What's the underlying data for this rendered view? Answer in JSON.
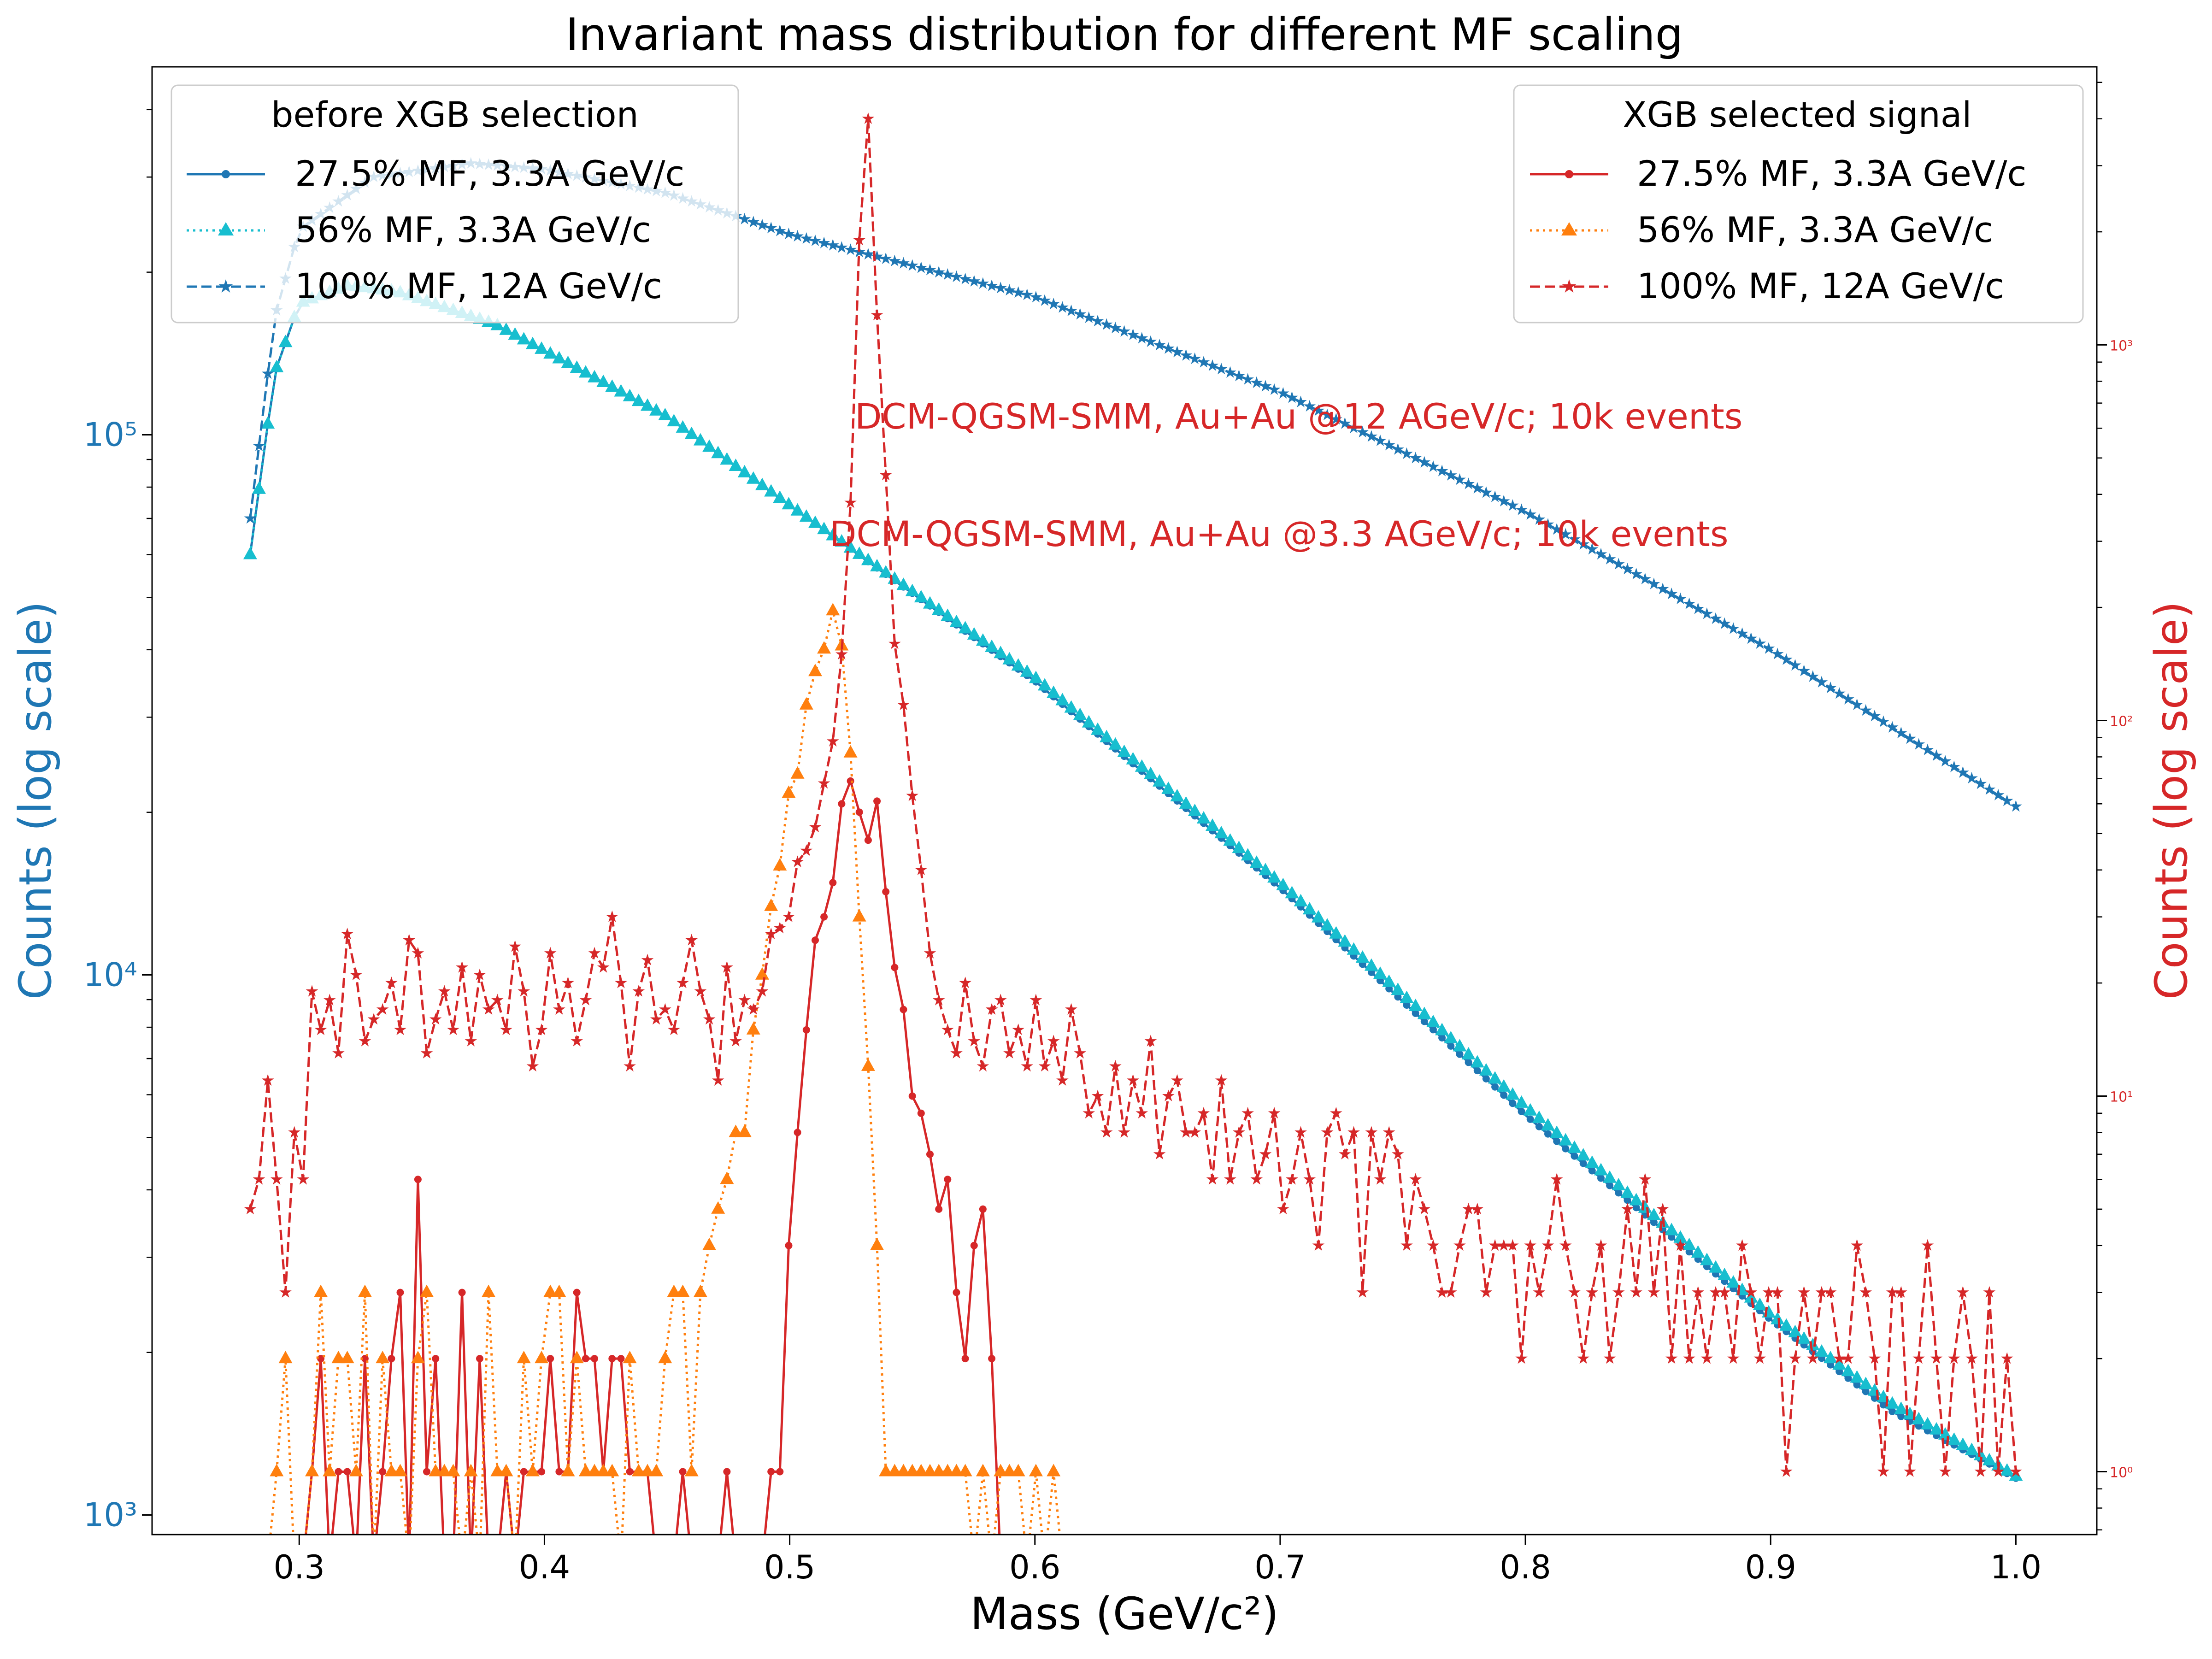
{
  "chart_data": {
    "type": "line",
    "title": "Invariant mass distribution for different MF scaling",
    "xlabel": "Mass (GeV/c²)",
    "ylabel_left": "Counts (log scale)",
    "ylabel_right": "Counts (log scale)",
    "xlim": [
      0.24,
      1.033
    ],
    "ylim_left": [
      920,
      480000
    ],
    "ylim_right": [
      0.68,
      5500
    ],
    "yscale_left": "log",
    "yscale_right": "log",
    "grid": false,
    "x_ticks": [
      "0.3",
      "0.4",
      "0.5",
      "0.6",
      "0.7",
      "0.8",
      "0.9",
      "1.0"
    ],
    "y_ticks_left": [
      "10³",
      "10⁴",
      "10⁵"
    ],
    "y_ticks_right": [
      "10⁰",
      "10¹",
      "10²",
      "10³"
    ],
    "colors": {
      "left_axis": "#1f77b4",
      "right_axis": "#d62728",
      "blue": "#1f77b4",
      "cyan": "#17becf",
      "red": "#d62728",
      "orange": "#ff7f0e"
    },
    "legend_left": {
      "title": "before XGB selection",
      "placement": "upper-left",
      "entries": [
        "27.5% MF, 3.3A GeV/c",
        "56% MF, 3.3A GeV/c",
        "100% MF, 12A GeV/c"
      ]
    },
    "legend_right": {
      "title": "XGB selected signal",
      "placement": "upper-right",
      "entries": [
        "27.5% MF, 3.3A GeV/c",
        "56% MF, 3.3A GeV/c",
        "100% MF, 12A GeV/c"
      ]
    },
    "annotations": [
      {
        "text": "DCM-QGSM-SMM, Au+Au @12 AGeV/c; 10k events",
        "x": 0.53,
        "y_right": 765
      },
      {
        "text": "DCM-QGSM-SMM, Au+Au @3.3 AGeV/c; 10k events",
        "x": 0.52,
        "y_right": 340
      }
    ],
    "x": {
      "start": 0.28,
      "step": 0.0036,
      "count": 201
    },
    "series": [
      {
        "name": "27.5% MF, 3.3A GeV/c",
        "axis": "left",
        "color": "#1f77b4",
        "style": "solid",
        "marker": "dot",
        "anchors": [
          [
            0.28,
            60000
          ],
          [
            0.29,
            130000
          ],
          [
            0.3,
            175000
          ],
          [
            0.32,
            189000
          ],
          [
            0.34,
            184000
          ],
          [
            0.38,
            160000
          ],
          [
            0.45,
            108000
          ],
          [
            0.5,
            74000
          ],
          [
            0.6,
            35000
          ],
          [
            0.7,
            14500
          ],
          [
            0.8,
            5500
          ],
          [
            0.9,
            2300
          ],
          [
            0.95,
            1550
          ],
          [
            1.0,
            1170
          ]
        ]
      },
      {
        "name": "56% MF, 3.3A GeV/c",
        "axis": "left",
        "color": "#17becf",
        "style": "dotted",
        "marker": "triangle",
        "anchors": [
          [
            0.28,
            60000
          ],
          [
            0.29,
            130000
          ],
          [
            0.3,
            175000
          ],
          [
            0.32,
            189000
          ],
          [
            0.34,
            184000
          ],
          [
            0.38,
            160000
          ],
          [
            0.45,
            108000
          ],
          [
            0.5,
            74000
          ],
          [
            0.6,
            35500
          ],
          [
            0.7,
            14800
          ],
          [
            0.8,
            5700
          ],
          [
            0.9,
            2350
          ],
          [
            0.95,
            1600
          ],
          [
            1.0,
            1180
          ]
        ]
      },
      {
        "name": "100% MF, 12A GeV/c",
        "axis": "left",
        "color": "#1f77b4",
        "style": "dashed",
        "marker": "star",
        "anchors": [
          [
            0.28,
            70000
          ],
          [
            0.29,
            165000
          ],
          [
            0.3,
            240000
          ],
          [
            0.33,
            300000
          ],
          [
            0.37,
            318000
          ],
          [
            0.4,
            310000
          ],
          [
            0.45,
            280000
          ],
          [
            0.5,
            235000
          ],
          [
            0.6,
            180000
          ],
          [
            0.7,
            120000
          ],
          [
            0.8,
            72000
          ],
          [
            0.9,
            40000
          ],
          [
            1.0,
            20500
          ]
        ]
      },
      {
        "name": "27.5% MF, 3.3A GeV/c",
        "axis": "right",
        "color": "#d62728",
        "style": "solid",
        "marker": "dot",
        "values": [
          0,
          0,
          0,
          0,
          0,
          0,
          0,
          1,
          2,
          0,
          1,
          1,
          0,
          2,
          0,
          1,
          2,
          3,
          0,
          6,
          1,
          2,
          0,
          0,
          3,
          0,
          2,
          0,
          0,
          1,
          0,
          1,
          1,
          1,
          2,
          1,
          1,
          3,
          2,
          2,
          1,
          2,
          2,
          1,
          1,
          1,
          0,
          0,
          0,
          1,
          0,
          0,
          0,
          0,
          1,
          0,
          0,
          0,
          0,
          1,
          1,
          4,
          8,
          15,
          26,
          30,
          37,
          60,
          69,
          57,
          48,
          61,
          35,
          22,
          17,
          10,
          9,
          7,
          5,
          6,
          3,
          2,
          4,
          5,
          2,
          0,
          0,
          0,
          0,
          0,
          0,
          0,
          0,
          0,
          0,
          0,
          0,
          0,
          0,
          0,
          0,
          0,
          0,
          0,
          0,
          0,
          0,
          0,
          0,
          0,
          0,
          0,
          0,
          0,
          0,
          0,
          0,
          0,
          0,
          0,
          0,
          0,
          0,
          0,
          0,
          0,
          0,
          0,
          0,
          0,
          0,
          0,
          0,
          0,
          0,
          0,
          0,
          0,
          0,
          0,
          0,
          0,
          0,
          0,
          0,
          0,
          0,
          0,
          0,
          0,
          0,
          0,
          0,
          0,
          0,
          0,
          0,
          0,
          0,
          0,
          0,
          0,
          0,
          0,
          0,
          0,
          0,
          0,
          0,
          0,
          0,
          0,
          0,
          0,
          0,
          0,
          0,
          0,
          0,
          0,
          0,
          0,
          0,
          0,
          0,
          0,
          0,
          0,
          0,
          0,
          0,
          0,
          0,
          0,
          0,
          0,
          0,
          0,
          0,
          0,
          0,
          0,
          0,
          0,
          0,
          0,
          0,
          0,
          0,
          0,
          0,
          0,
          0,
          0,
          0
        ]
      },
      {
        "name": "56% MF, 3.3A GeV/c",
        "axis": "right",
        "color": "#ff7f0e",
        "style": "dotted",
        "marker": "triangle",
        "values": [
          0,
          0,
          0,
          1,
          2,
          0,
          0,
          1,
          3,
          1,
          2,
          2,
          1,
          3,
          0,
          2,
          1,
          1,
          0,
          2,
          3,
          1,
          1,
          1,
          0,
          1,
          0,
          3,
          1,
          1,
          0,
          2,
          1,
          2,
          3,
          3,
          1,
          2,
          1,
          1,
          1,
          1,
          0,
          2,
          1,
          1,
          1,
          2,
          3,
          3,
          1,
          3,
          4,
          5,
          6,
          8,
          8,
          15,
          21,
          32,
          41,
          64,
          72,
          110,
          135,
          155,
          196,
          158,
          82,
          30,
          12,
          4,
          1,
          1,
          1,
          1,
          1,
          1,
          1,
          1,
          1,
          1,
          0,
          1,
          0,
          1,
          1,
          1,
          0,
          1,
          0,
          1,
          0,
          0,
          0,
          0,
          0,
          0,
          0,
          0,
          0,
          0,
          0,
          0,
          0,
          0,
          0,
          0,
          0,
          0,
          0,
          0,
          0,
          0,
          0,
          0,
          0,
          0,
          0,
          0,
          0,
          0,
          0,
          0,
          0,
          0,
          0,
          0,
          0,
          0,
          0,
          0,
          0,
          0,
          0,
          0,
          0,
          0,
          0,
          0,
          0,
          0,
          0,
          0,
          0,
          0,
          0,
          0,
          0,
          0,
          0,
          0,
          0,
          0,
          0,
          0,
          0,
          0,
          0,
          0,
          0,
          0,
          0,
          0,
          0,
          0,
          0,
          0,
          0,
          0,
          0,
          0,
          0,
          0,
          0,
          0,
          0,
          0,
          0,
          0,
          0,
          0,
          0,
          0,
          0,
          0,
          0,
          0,
          0,
          0,
          0,
          0,
          0,
          0,
          0,
          0,
          0,
          0,
          0,
          0,
          0,
          0,
          0,
          0,
          0,
          0,
          0
        ]
      },
      {
        "name": "100% MF, 12A GeV/c",
        "axis": "right",
        "color": "#d62728",
        "style": "dashed",
        "marker": "star",
        "values": [
          5,
          6,
          11,
          6,
          3,
          8,
          6,
          19,
          15,
          18,
          13,
          27,
          21,
          14,
          16,
          17,
          20,
          15,
          26,
          24,
          13,
          16,
          19,
          15,
          22,
          14,
          21,
          17,
          18,
          15,
          25,
          19,
          12,
          15,
          24,
          17,
          20,
          14,
          18,
          24,
          22,
          30,
          20,
          12,
          19,
          23,
          16,
          17,
          15,
          20,
          26,
          19,
          16,
          11,
          22,
          14,
          18,
          17,
          19,
          27,
          28,
          30,
          42,
          45,
          52,
          68,
          88,
          150,
          380,
          1900,
          4000,
          1200,
          450,
          160,
          110,
          63,
          40,
          24,
          18,
          15,
          13,
          20,
          14,
          12,
          17,
          18,
          13,
          15,
          12,
          18,
          12,
          14,
          11,
          17,
          13,
          9,
          10,
          8,
          12,
          8,
          11,
          9,
          14,
          7,
          10,
          11,
          8,
          8,
          9,
          6,
          11,
          6,
          8,
          9,
          6,
          7,
          9,
          5,
          6,
          8,
          6,
          4,
          8,
          9,
          7,
          8,
          3,
          8,
          6,
          8,
          7,
          4,
          6,
          5,
          4,
          3,
          3,
          4,
          5,
          5,
          3,
          4,
          4,
          4,
          2,
          4,
          3,
          4,
          6,
          4,
          3,
          2,
          3,
          4,
          2,
          3,
          5,
          3,
          6,
          3,
          5,
          2,
          4,
          2,
          3,
          2,
          3,
          3,
          2,
          4,
          3,
          2,
          3,
          3,
          1,
          2,
          3,
          2,
          3,
          3,
          2,
          2,
          4,
          3,
          2,
          1,
          3,
          3,
          1,
          2,
          4,
          2,
          1,
          2,
          3,
          2,
          1,
          3,
          1,
          2,
          1,
          2,
          1
        ]
      }
    ]
  }
}
